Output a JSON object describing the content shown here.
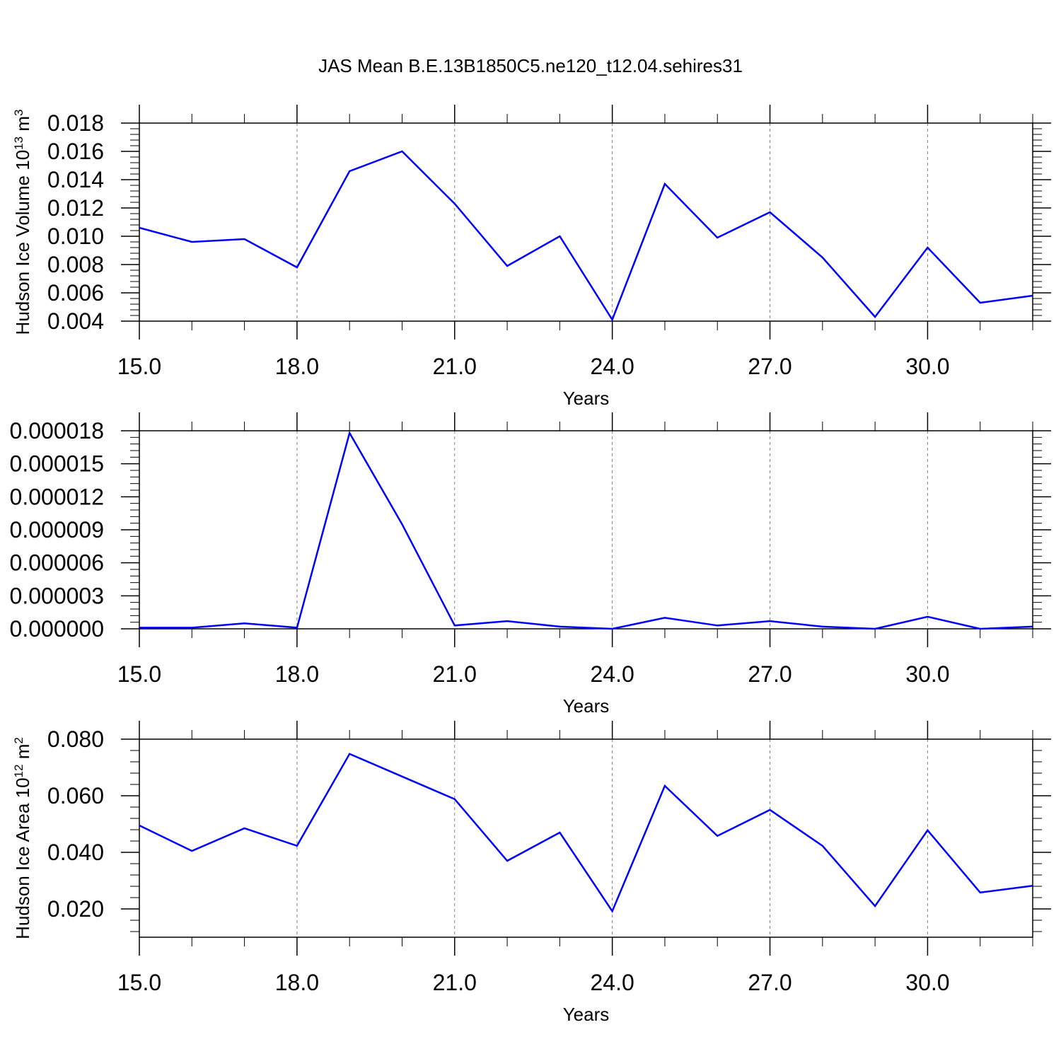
{
  "figure_title": "JAS Mean B.E.13B1850C5.ne120_t12.04.sehires31",
  "colors": {
    "series": "#0000ff",
    "axis": "#000000",
    "gridline": "#808080"
  },
  "chart_data": [
    {
      "type": "line",
      "ylabel": {
        "text": "Hudson Ice Volume 10",
        "sup": "13",
        "unit": " m",
        "unit_sup": "3"
      },
      "xlabel": "Years",
      "xlim": [
        15,
        32
      ],
      "ylim": [
        0.004,
        0.018
      ],
      "xticks": [
        "15.0",
        "18.0",
        "21.0",
        "24.0",
        "27.0",
        "30.0"
      ],
      "xtick_values": [
        15,
        18,
        21,
        24,
        27,
        30
      ],
      "yticks": [
        "0.004",
        "0.006",
        "0.008",
        "0.010",
        "0.012",
        "0.014",
        "0.016",
        "0.018"
      ],
      "ytick_values": [
        0.004,
        0.006,
        0.008,
        0.01,
        0.012,
        0.014,
        0.016,
        0.018
      ],
      "grid_x": true,
      "x": [
        15,
        16,
        17,
        18,
        19,
        20,
        21,
        22,
        23,
        24,
        25,
        26,
        27,
        28,
        29,
        30,
        31,
        32
      ],
      "values": [
        0.0106,
        0.0096,
        0.0098,
        0.0078,
        0.0146,
        0.016,
        0.0123,
        0.0079,
        0.01,
        0.0041,
        0.0137,
        0.0099,
        0.0117,
        0.0085,
        0.0043,
        0.0092,
        0.0053,
        0.0058
      ]
    },
    {
      "type": "line",
      "ylabel": {
        "text": "",
        "sup": "",
        "unit": "",
        "unit_sup": ""
      },
      "xlabel": "Years",
      "xlim": [
        15,
        32
      ],
      "ylim": [
        0.0,
        1.8e-05
      ],
      "xticks": [
        "15.0",
        "18.0",
        "21.0",
        "24.0",
        "27.0",
        "30.0"
      ],
      "xtick_values": [
        15,
        18,
        21,
        24,
        27,
        30
      ],
      "yticks": [
        "0.000000",
        "0.000003",
        "0.000006",
        "0.000009",
        "0.000012",
        "0.000015",
        "0.000018"
      ],
      "ytick_values": [
        0.0,
        3e-06,
        6e-06,
        9e-06,
        1.2e-05,
        1.5e-05,
        1.8e-05
      ],
      "grid_x": true,
      "x": [
        15,
        16,
        17,
        18,
        19,
        20,
        21,
        22,
        23,
        24,
        25,
        26,
        27,
        28,
        29,
        30,
        31,
        32
      ],
      "values": [
        1e-07,
        1e-07,
        5e-07,
        1e-07,
        1.78e-05,
        9.5e-06,
        3e-07,
        7e-07,
        2e-07,
        0.0,
        1e-06,
        3e-07,
        7e-07,
        2e-07,
        0.0,
        1.1e-06,
        0.0,
        2e-07
      ]
    },
    {
      "type": "line",
      "ylabel": {
        "text": "Hudson Ice Area 10",
        "sup": "12",
        "unit": " m",
        "unit_sup": "2"
      },
      "xlabel": "Years",
      "xlim": [
        15,
        32
      ],
      "ylim": [
        0.01,
        0.08
      ],
      "xticks": [
        "15.0",
        "18.0",
        "21.0",
        "24.0",
        "27.0",
        "30.0"
      ],
      "xtick_values": [
        15,
        18,
        21,
        24,
        27,
        30
      ],
      "yticks": [
        "0.020",
        "0.040",
        "0.060",
        "0.080"
      ],
      "ytick_values": [
        0.02,
        0.04,
        0.06,
        0.08
      ],
      "grid_x": true,
      "x": [
        15,
        16,
        17,
        18,
        19,
        20,
        21,
        22,
        23,
        24,
        25,
        26,
        27,
        28,
        29,
        30,
        31,
        32
      ],
      "values": [
        0.0495,
        0.0405,
        0.0485,
        0.0423,
        0.0748,
        0.0668,
        0.0588,
        0.037,
        0.047,
        0.0192,
        0.0635,
        0.0458,
        0.055,
        0.0423,
        0.021,
        0.0478,
        0.0258,
        0.0282
      ]
    }
  ]
}
